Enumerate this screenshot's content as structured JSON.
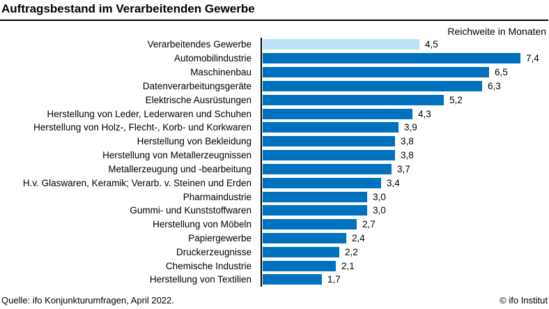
{
  "title": "Auftragsbestand im Verarbeitenden Gewerbe",
  "axis_caption": "Reichweite in Monaten",
  "footer": {
    "source": "Quelle: ifo Konjunkturumfragen, April 2022.",
    "copyright": "© ifo Institut"
  },
  "colors": {
    "bar": "#0072bd",
    "highlight_bar": "#bce3f9",
    "text": "#000000",
    "axis": "#000000"
  },
  "chart_data": {
    "type": "bar",
    "orientation": "horizontal",
    "title": "Auftragsbestand im Verarbeitenden Gewerbe",
    "xlabel": "Reichweite in Monaten",
    "xlim": [
      0,
      7.4
    ],
    "grid": false,
    "legend": false,
    "highlighted_index": 0,
    "categories": [
      "Verarbeitendes Gewerbe",
      "Automobilindustrie",
      "Maschinenbau",
      "Datenverarbeitungsgeräte",
      "Elektrische Ausrüstungen",
      "Herstellung von Leder, Lederwaren und Schuhen",
      "Herstellung von Holz-, Flecht-, Korb- und Korkwaren",
      "Herstellung von Bekleidung",
      "Herstellung von Metallerzeugnissen",
      "Metallerzeugung und -bearbeitung",
      "H.v. Glaswaren, Keramik; Verarb. v. Steinen und Erden",
      "Pharmaindustrie",
      "Gummi- und Kunststoffwaren",
      "Herstellung von Möbeln",
      "Papiergewerbe",
      "Druckerzeugnisse",
      "Chemische Industrie",
      "Herstellung von Textilien"
    ],
    "values": [
      4.5,
      7.4,
      6.5,
      6.3,
      5.2,
      4.3,
      3.9,
      3.8,
      3.8,
      3.7,
      3.4,
      3.0,
      3.0,
      2.7,
      2.4,
      2.2,
      2.1,
      1.7
    ],
    "value_labels": [
      "4,5",
      "7,4",
      "6,5",
      "6,3",
      "5,2",
      "4,3",
      "3,9",
      "3,8",
      "3,8",
      "3,7",
      "3,4",
      "3,0",
      "3,0",
      "2,7",
      "2,4",
      "2,2",
      "2,1",
      "1,7"
    ]
  }
}
